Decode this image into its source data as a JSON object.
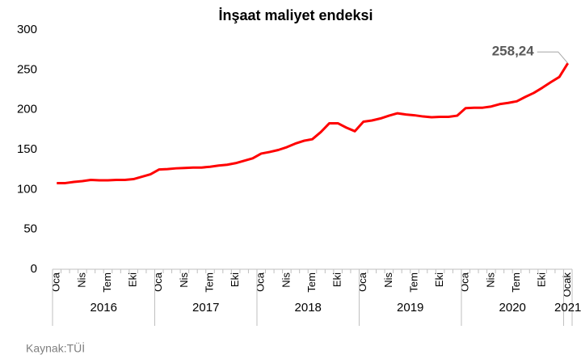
{
  "chart_data": {
    "type": "line",
    "title": "İnşaat maliyet endeksi",
    "categories": [
      "Oca",
      null,
      null,
      "Nis",
      null,
      null,
      "Tem",
      null,
      null,
      "Eki",
      null,
      null,
      "Oca",
      null,
      null,
      "Nis",
      null,
      null,
      "Tem",
      null,
      null,
      "Eki",
      null,
      null,
      "Oca",
      null,
      null,
      "Nis",
      null,
      null,
      "Tem",
      null,
      null,
      "Eki",
      null,
      null,
      "Oca",
      null,
      null,
      "Nis",
      null,
      null,
      "Tem",
      null,
      null,
      "Eki",
      null,
      null,
      "Oca",
      null,
      null,
      "Nis",
      null,
      null,
      "Tem",
      null,
      null,
      "Eki",
      null,
      null,
      "Ocak"
    ],
    "groups": [
      "2016",
      "2017",
      "2018",
      "2019",
      "2020",
      "2021"
    ],
    "series": [
      {
        "name": "İnşaat maliyet endeksi",
        "color": "#ff0000",
        "values": [
          108,
          108,
          109.5,
          110.5,
          112,
          111.5,
          111.5,
          112,
          112,
          113,
          116,
          119,
          125,
          125.5,
          126.5,
          127,
          127.5,
          127.5,
          128.5,
          130,
          131,
          133,
          136,
          139,
          145,
          147,
          149.5,
          153,
          157.5,
          161,
          163,
          172,
          183,
          183,
          177.5,
          173,
          185,
          186.5,
          189,
          192.5,
          195.5,
          194,
          193,
          191.5,
          190.5,
          191,
          191,
          192.5,
          202,
          202.5,
          202.5,
          204,
          207,
          208.5,
          210.5,
          216,
          221,
          227.5,
          234.5,
          241,
          258.24
        ],
        "value_labels": [
          null,
          null,
          null,
          null,
          null,
          null,
          null,
          null,
          null,
          null,
          null,
          null,
          null,
          null,
          null,
          null,
          null,
          null,
          null,
          null,
          null,
          null,
          null,
          null,
          null,
          null,
          null,
          null,
          null,
          null,
          null,
          null,
          null,
          null,
          null,
          null,
          null,
          null,
          null,
          null,
          null,
          null,
          null,
          null,
          null,
          null,
          null,
          null,
          null,
          null,
          null,
          null,
          null,
          null,
          null,
          null,
          null,
          null,
          null,
          null,
          "258,24"
        ]
      }
    ],
    "ylim": [
      0,
      300
    ],
    "yticks": [
      0,
      50,
      100,
      150,
      200,
      250,
      300
    ],
    "grid": false,
    "source": "Kaynak:TÜİ"
  }
}
